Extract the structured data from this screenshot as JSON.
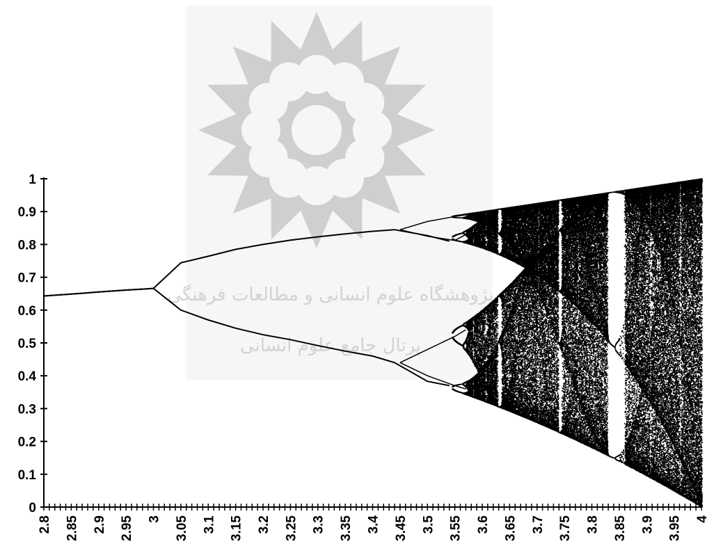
{
  "chart_data": {
    "type": "scatter",
    "title": "",
    "xlabel": "",
    "ylabel": "",
    "xlim": [
      2.8,
      4.0
    ],
    "ylim": [
      0,
      1
    ],
    "x_tick_labels": [
      "2.8",
      "2.85",
      "2.9",
      "2.95",
      "3",
      "3.05",
      "3.1",
      "3.15",
      "3.2",
      "3.25",
      "3.3",
      "3.35",
      "3.4",
      "3.45",
      "3.5",
      "3.55",
      "3.6",
      "3.65",
      "3.7",
      "3.75",
      "3.8",
      "3.85",
      "3.9",
      "3.95",
      "4"
    ],
    "y_tick_labels": [
      "0",
      "0.1",
      "0.2",
      "0.3",
      "0.4",
      "0.5",
      "0.6",
      "0.7",
      "0.8",
      "0.9",
      "1"
    ],
    "grid": false,
    "legend": "none",
    "series": [
      {
        "values_description": "bifurcation diagram",
        "x": [
          2.8,
          2.85,
          2.9,
          2.95,
          2.98,
          3.0,
          3.05,
          3.1,
          3.15,
          3.2,
          3.25,
          3.3,
          3.35,
          3.4,
          3.44,
          3.5,
          3.54
        ],
        "upper_branch": [
          0.643,
          0.649,
          0.655,
          0.661,
          0.664,
          0.666,
          0.744,
          0.764,
          0.785,
          0.8,
          0.813,
          0.823,
          0.832,
          0.84,
          0.845,
          0.827,
          0.81
        ],
        "lower_branch": [
          0.643,
          0.649,
          0.655,
          0.661,
          0.664,
          0.666,
          0.6,
          0.57,
          0.545,
          0.525,
          0.51,
          0.492,
          0.475,
          0.46,
          0.44,
          0.383,
          0.37
        ]
      }
    ],
    "chaos_onset_x": 3.57,
    "window_x": [
      3.83,
      3.86
    ],
    "color": "#000000"
  },
  "watermark": {
    "line1": "پژوهشگاه علوم انسانی و مطالعات فرهنگی",
    "line2": "پرتال جامع علوم انسانی"
  }
}
